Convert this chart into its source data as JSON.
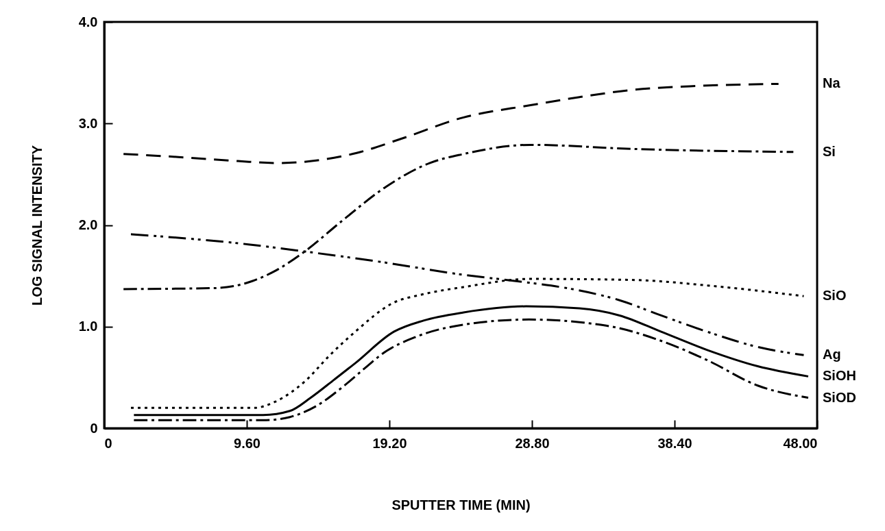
{
  "chart_data": {
    "type": "line",
    "xlabel": "SPUTTER TIME (MIN)",
    "ylabel": "LOG SIGNAL INTENSITY",
    "xlim": [
      0,
      48
    ],
    "xticks": [
      0,
      {
        "value": 9.6,
        "label": "9.60"
      },
      {
        "value": 19.2,
        "label": "19.20"
      },
      {
        "value": 28.8,
        "label": "28.80"
      },
      {
        "value": 38.4,
        "label": "38.40"
      },
      {
        "value": 48,
        "label": "48.00"
      }
    ],
    "ylim": [
      0,
      4
    ],
    "yticks": [
      0,
      {
        "value": 1,
        "label": "1.0"
      },
      {
        "value": 2,
        "label": "2.0"
      },
      {
        "value": 3,
        "label": "3.0"
      },
      {
        "value": 4,
        "label": "4.0"
      }
    ],
    "grid": false,
    "marker": "none",
    "series": [
      {
        "name": "Na",
        "color": "#000000",
        "line_style": "dashed",
        "x": [
          1.3,
          5,
          9,
          11.7,
          14.5,
          17,
          20,
          24.2,
          28.7,
          32,
          35.5,
          40,
          45.4
        ],
        "values": [
          2.7,
          2.67,
          2.63,
          2.61,
          2.64,
          2.71,
          2.85,
          3.06,
          3.18,
          3.26,
          3.33,
          3.37,
          3.39
        ]
      },
      {
        "name": "Si",
        "color": "#000000",
        "line_style": "dashdot",
        "x": [
          1.3,
          7.5,
          10,
          11.4,
          13.5,
          16,
          19,
          21.9,
          24.2,
          28.7,
          35.5,
          46.4
        ],
        "values": [
          1.37,
          1.38,
          1.45,
          1.54,
          1.74,
          2.04,
          2.38,
          2.61,
          2.7,
          2.79,
          2.75,
          2.72
        ]
      },
      {
        "name": "SiO",
        "color": "#000000",
        "line_style": "dotted",
        "x": [
          1.8,
          10.1,
          11.5,
          13.5,
          15.2,
          16.9,
          19.4,
          21.5,
          24.2,
          28.7,
          35.5,
          41,
          47.1
        ],
        "values": [
          0.2,
          0.2,
          0.26,
          0.46,
          0.72,
          0.95,
          1.23,
          1.32,
          1.39,
          1.47,
          1.46,
          1.4,
          1.3
        ]
      },
      {
        "name": "Ag",
        "color": "#000000",
        "line_style": "dashdotdot",
        "x": [
          1.8,
          9.7,
          13.5,
          18.5,
          24.2,
          28.2,
          31.5,
          34.7,
          37.5,
          40.6,
          44,
          47.1
        ],
        "values": [
          1.91,
          1.81,
          1.74,
          1.64,
          1.51,
          1.44,
          1.37,
          1.26,
          1.11,
          0.95,
          0.8,
          0.72
        ]
      },
      {
        "name": "SiOH",
        "color": "#000000",
        "line_style": "solid",
        "x": [
          2,
          10.7,
          12.5,
          13.9,
          15.5,
          16.9,
          19.5,
          21.5,
          24.2,
          28.4,
          32,
          34.7,
          37.5,
          40.6,
          44,
          47.4
        ],
        "values": [
          0.13,
          0.13,
          0.17,
          0.3,
          0.48,
          0.64,
          0.95,
          1.06,
          1.14,
          1.2,
          1.18,
          1.11,
          0.95,
          0.77,
          0.61,
          0.51
        ]
      },
      {
        "name": "SiOD",
        "color": "#000000",
        "line_style": "dashdot",
        "x": [
          2,
          10.9,
          12.5,
          14.3,
          16,
          17.7,
          18.7,
          21,
          24.2,
          28.6,
          33.8,
          37.5,
          40.6,
          44,
          47.4
        ],
        "values": [
          0.08,
          0.08,
          0.11,
          0.22,
          0.4,
          0.61,
          0.73,
          0.9,
          1.02,
          1.07,
          1.01,
          0.86,
          0.67,
          0.42,
          0.3
        ]
      }
    ]
  }
}
